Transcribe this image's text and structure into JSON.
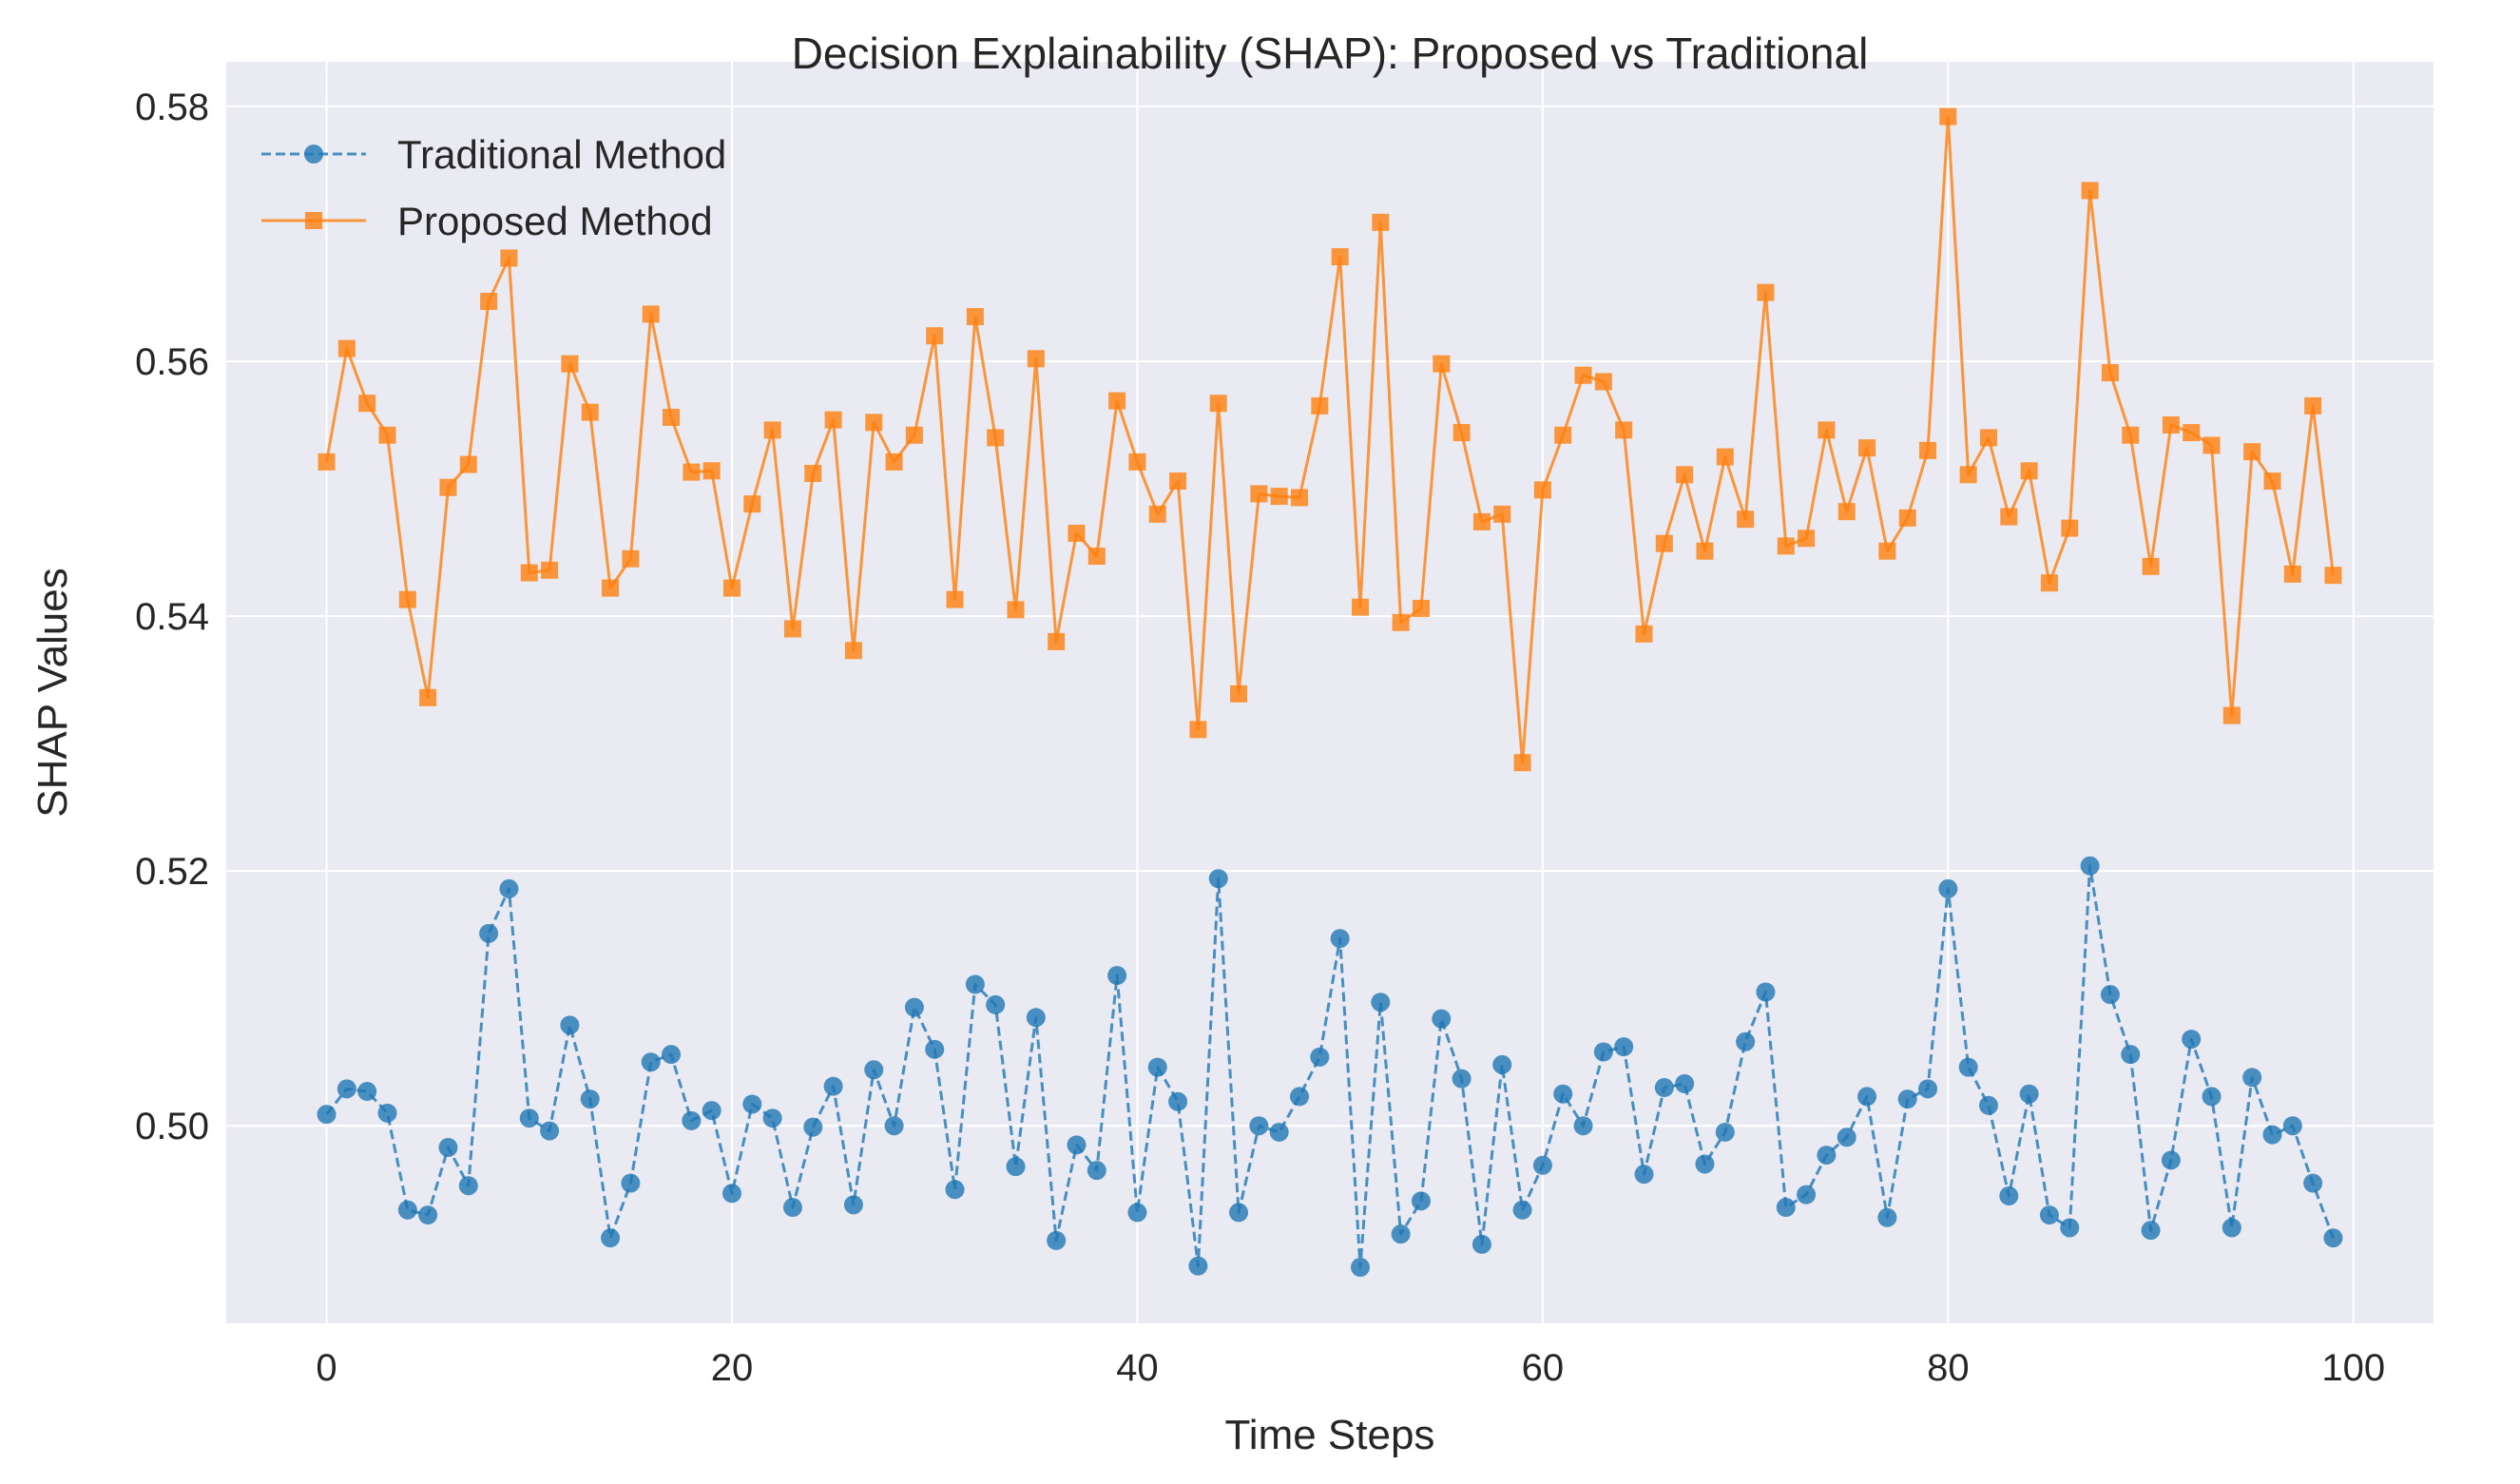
{
  "chart_data": {
    "type": "line",
    "title": "Decision Explainability (SHAP): Proposed vs Traditional",
    "xlabel": "Time Steps",
    "ylabel": "SHAP Values",
    "xlim": [
      -4.95,
      103.95
    ],
    "ylim": [
      0.4845,
      0.5835
    ],
    "xticks": [
      0,
      20,
      40,
      60,
      80,
      100
    ],
    "xtick_labels": [
      "0",
      "20",
      "40",
      "60",
      "80",
      "100"
    ],
    "yticks": [
      0.5,
      0.52,
      0.54,
      0.56,
      0.58
    ],
    "ytick_labels": [
      "0.50",
      "0.52",
      "0.54",
      "0.56",
      "0.58"
    ],
    "grid": true,
    "legend_position": "top-left",
    "background_color": "#eaeaf2",
    "series": [
      {
        "name": "Traditional Method",
        "color": "#1f77b4",
        "line_style": "dashed",
        "marker": "circle",
        "x": [
          0,
          1,
          2,
          3,
          4,
          5,
          6,
          7,
          8,
          9,
          10,
          11,
          12,
          13,
          14,
          15,
          16,
          17,
          18,
          19,
          20,
          21,
          22,
          23,
          24,
          25,
          26,
          27,
          28,
          29,
          30,
          31,
          32,
          33,
          34,
          35,
          36,
          37,
          38,
          39,
          40,
          41,
          42,
          43,
          44,
          45,
          46,
          47,
          48,
          49,
          50,
          51,
          52,
          53,
          54,
          55,
          56,
          57,
          58,
          59,
          60,
          61,
          62,
          63,
          64,
          65,
          66,
          67,
          68,
          69,
          70,
          71,
          72,
          73,
          74,
          75,
          76,
          77,
          78,
          79,
          80,
          81,
          82,
          83,
          84,
          85,
          86,
          87,
          88,
          89,
          90,
          91,
          92,
          93,
          94,
          95,
          96,
          97,
          98,
          99
        ],
        "values": [
          0.5009,
          0.5029,
          0.5027,
          0.501,
          0.4934,
          0.493,
          0.4983,
          0.4953,
          0.5151,
          0.5186,
          0.5006,
          0.4996,
          0.5079,
          0.5021,
          0.4912,
          0.4955,
          0.505,
          0.5056,
          0.5004,
          0.5012,
          0.4947,
          0.5017,
          0.5006,
          0.4936,
          0.4999,
          0.5031,
          0.4938,
          0.5044,
          0.5,
          0.5093,
          0.506,
          0.495,
          0.5111,
          0.5095,
          0.4968,
          0.5085,
          0.491,
          0.4985,
          0.4965,
          0.5118,
          0.4932,
          0.5046,
          0.5019,
          0.489,
          0.5194,
          0.4932,
          0.5,
          0.4995,
          0.5023,
          0.5054,
          0.5147,
          0.4889,
          0.5097,
          0.4915,
          0.4941,
          0.5084,
          0.5037,
          0.4907,
          0.5048,
          0.4934,
          0.4969,
          0.5025,
          0.5,
          0.5058,
          0.5062,
          0.4962,
          0.503,
          0.5033,
          0.497,
          0.4995,
          0.5066,
          0.5105,
          0.4936,
          0.4946,
          0.4977,
          0.4991,
          0.5023,
          0.4928,
          0.5021,
          0.5029,
          0.5186,
          0.5046,
          0.5016,
          0.4945,
          0.5025,
          0.493,
          0.492,
          0.5204,
          0.5103,
          0.5056,
          0.4918,
          0.4973,
          0.5068,
          0.5023,
          0.492,
          0.5038,
          0.4993,
          0.5,
          0.4955,
          0.4912
        ]
      },
      {
        "name": "Proposed Method",
        "color": "#ff7f0e",
        "line_style": "solid",
        "marker": "square",
        "x": [
          0,
          1,
          2,
          3,
          4,
          5,
          6,
          7,
          8,
          9,
          10,
          11,
          12,
          13,
          14,
          15,
          16,
          17,
          18,
          19,
          20,
          21,
          22,
          23,
          24,
          25,
          26,
          27,
          28,
          29,
          30,
          31,
          32,
          33,
          34,
          35,
          36,
          37,
          38,
          39,
          40,
          41,
          42,
          43,
          44,
          45,
          46,
          47,
          48,
          49,
          50,
          51,
          52,
          53,
          54,
          55,
          56,
          57,
          58,
          59,
          60,
          61,
          62,
          63,
          64,
          65,
          66,
          67,
          68,
          69,
          70,
          71,
          72,
          73,
          74,
          75,
          76,
          77,
          78,
          79,
          80,
          81,
          82,
          83,
          84,
          85,
          86,
          87,
          88,
          89,
          90,
          91,
          92,
          93,
          94,
          95,
          96,
          97,
          98,
          99
        ],
        "values": [
          0.5521,
          0.561,
          0.5567,
          0.5542,
          0.5413,
          0.5336,
          0.5501,
          0.5519,
          0.5647,
          0.5681,
          0.5434,
          0.5436,
          0.5598,
          0.556,
          0.5422,
          0.5445,
          0.5637,
          0.5556,
          0.5513,
          0.5514,
          0.5422,
          0.5488,
          0.5546,
          0.539,
          0.5512,
          0.5554,
          0.5373,
          0.5552,
          0.5521,
          0.5542,
          0.562,
          0.5413,
          0.5635,
          0.554,
          0.5405,
          0.5602,
          0.538,
          0.5465,
          0.5447,
          0.5569,
          0.5521,
          0.548,
          0.5506,
          0.5311,
          0.5567,
          0.5339,
          0.5496,
          0.5494,
          0.5493,
          0.5565,
          0.5682,
          0.5407,
          0.5709,
          0.5395,
          0.5406,
          0.5598,
          0.5544,
          0.5474,
          0.548,
          0.5285,
          0.5499,
          0.5542,
          0.5589,
          0.5584,
          0.5546,
          0.5386,
          0.5457,
          0.5511,
          0.5451,
          0.5525,
          0.5476,
          0.5654,
          0.5455,
          0.5461,
          0.5546,
          0.5482,
          0.5532,
          0.5451,
          0.5477,
          0.553,
          0.5792,
          0.5511,
          0.554,
          0.5478,
          0.5514,
          0.5426,
          0.5469,
          0.5734,
          0.5591,
          0.5542,
          0.5439,
          0.555,
          0.5544,
          0.5534,
          0.5322,
          0.5529,
          0.5506,
          0.5433,
          0.5565,
          0.5432
        ]
      }
    ]
  }
}
